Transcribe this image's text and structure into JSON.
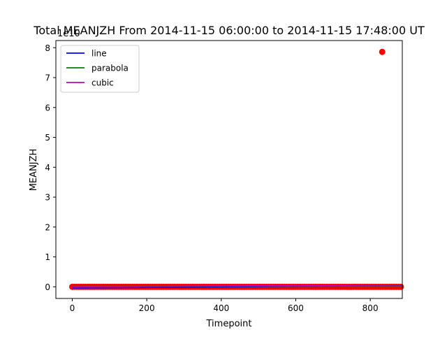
{
  "chart_data": {
    "type": "scatter",
    "title": "Total MEANJZH From 2014-11-15 06:00:00 to 2014-11-15 17:48:00 UT",
    "xlabel": "Timepoint",
    "ylabel": "MEANJZH",
    "y_offset_label": "1e10",
    "xlim": [
      -44,
      886
    ],
    "ylim": [
      -0.39,
      8.24
    ],
    "y_scale": 10000000000.0,
    "x_ticks": [
      0,
      200,
      400,
      600,
      800
    ],
    "x_tick_labels": [
      "0",
      "200",
      "400",
      "600",
      "800"
    ],
    "y_ticks": [
      0,
      1,
      2,
      3,
      4,
      5,
      6,
      7,
      8
    ],
    "y_tick_labels": [
      "0",
      "1",
      "2",
      "3",
      "4",
      "5",
      "6",
      "7",
      "8"
    ],
    "grid": false,
    "legend_placement": "upper-left",
    "legend": [
      "line",
      "parabola",
      "cubic"
    ],
    "colors": {
      "points": "#ff0000",
      "line": "#0000ff",
      "parabola": "#008000",
      "cubic": "#bf00bf"
    },
    "points": {
      "name": "data",
      "outlier": {
        "x": 832,
        "y": 7.86
      },
      "baseline_x_range": [
        0,
        886
      ],
      "baseline_y": 0.0
    },
    "series": [
      {
        "name": "line",
        "x": [
          0,
          886
        ],
        "y": [
          -0.04,
          0.04
        ]
      },
      {
        "name": "parabola",
        "x": [
          0,
          886
        ],
        "y": [
          0.02,
          0.02
        ]
      },
      {
        "name": "cubic",
        "x": [
          0,
          886
        ],
        "y": [
          0.0,
          0.06
        ]
      }
    ]
  }
}
